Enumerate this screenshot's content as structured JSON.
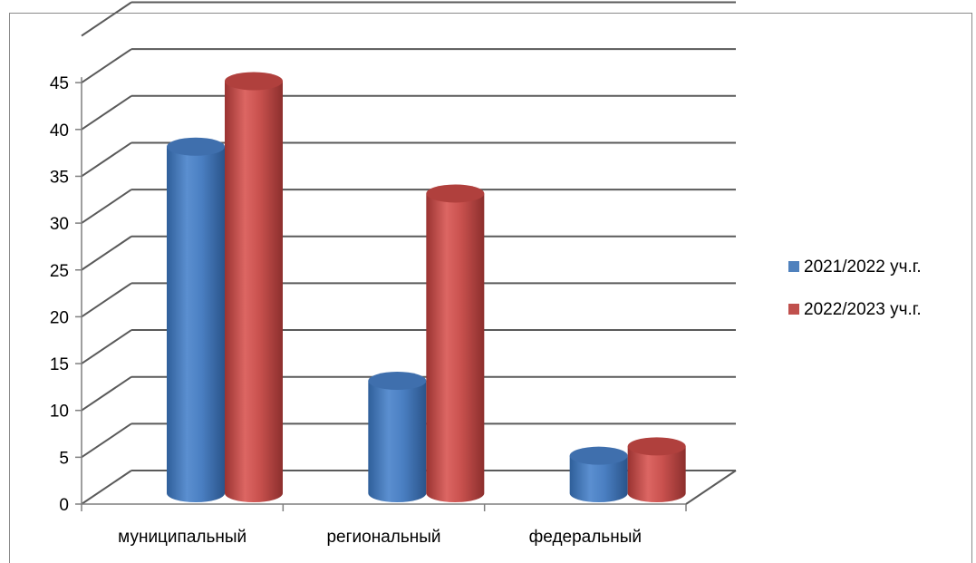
{
  "chart_data": {
    "type": "bar",
    "categories": [
      "муниципальный",
      "региональный",
      "федеральный"
    ],
    "series": [
      {
        "name": "2021/2022 уч.г.",
        "values": [
          37,
          12,
          4
        ],
        "color": "#4f81bd"
      },
      {
        "name": "2022/2023 уч.г.",
        "values": [
          44,
          32,
          5
        ],
        "color": "#c0504d"
      }
    ],
    "yticks": [
      "0",
      "5",
      "10",
      "15",
      "20",
      "25",
      "30",
      "35",
      "40",
      "45"
    ],
    "ylim": [
      0,
      50
    ],
    "grid": true,
    "legend_position": "right",
    "style": "3d-cylinder"
  }
}
